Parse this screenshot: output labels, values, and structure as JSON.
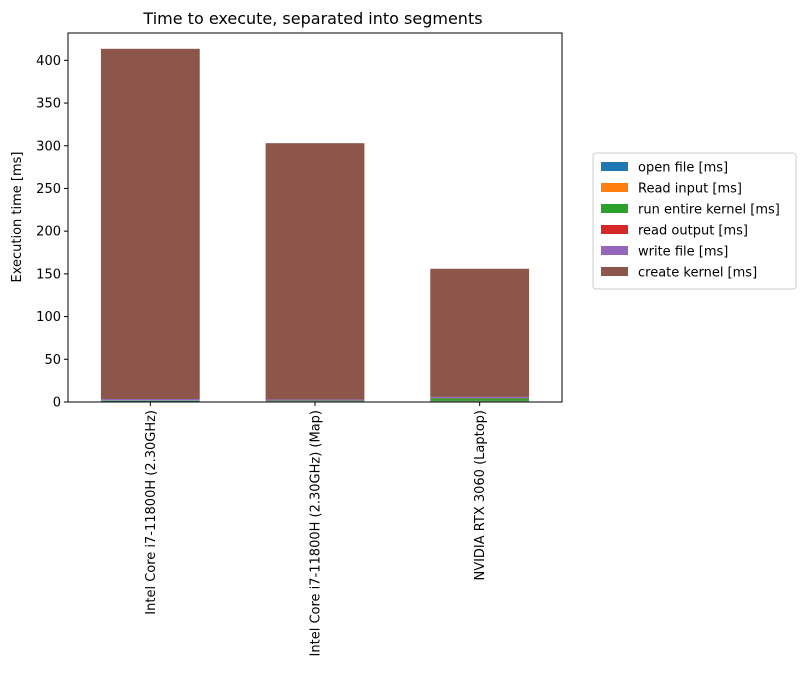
{
  "chart_data": {
    "type": "bar",
    "stacked": true,
    "title": "Time to execute, separated into segments",
    "xlabel": "",
    "ylabel": "Execution time [ms]",
    "ylim": [
      0,
      432
    ],
    "yticks": [
      0,
      50,
      100,
      150,
      200,
      250,
      300,
      350,
      400
    ],
    "grid": false,
    "legend_position": "center-right outside",
    "categories": [
      "Intel Core i7-11800H (2.30GHz)",
      "Intel Core i7-11800H (2.30GHz) (Map)",
      "NVIDIA RTX 3060 (Laptop)"
    ],
    "series": [
      {
        "name": "open file [ms]",
        "color": "#1f77b4",
        "values": [
          1.2,
          1.0,
          1.0
        ]
      },
      {
        "name": "Read input [ms]",
        "color": "#ff7f0e",
        "values": [
          0.2,
          0.2,
          0.3
        ]
      },
      {
        "name": "run entire kernel [ms]",
        "color": "#2ca02c",
        "values": [
          0.5,
          0.5,
          3.0
        ]
      },
      {
        "name": "read output [ms]",
        "color": "#d62728",
        "values": [
          0.1,
          0.1,
          0.3
        ]
      },
      {
        "name": "write file [ms]",
        "color": "#9467bd",
        "values": [
          1.5,
          1.2,
          1.4
        ]
      },
      {
        "name": "create kernel [ms]",
        "color": "#8c564b",
        "values": [
          410,
          300,
          150
        ]
      }
    ]
  }
}
